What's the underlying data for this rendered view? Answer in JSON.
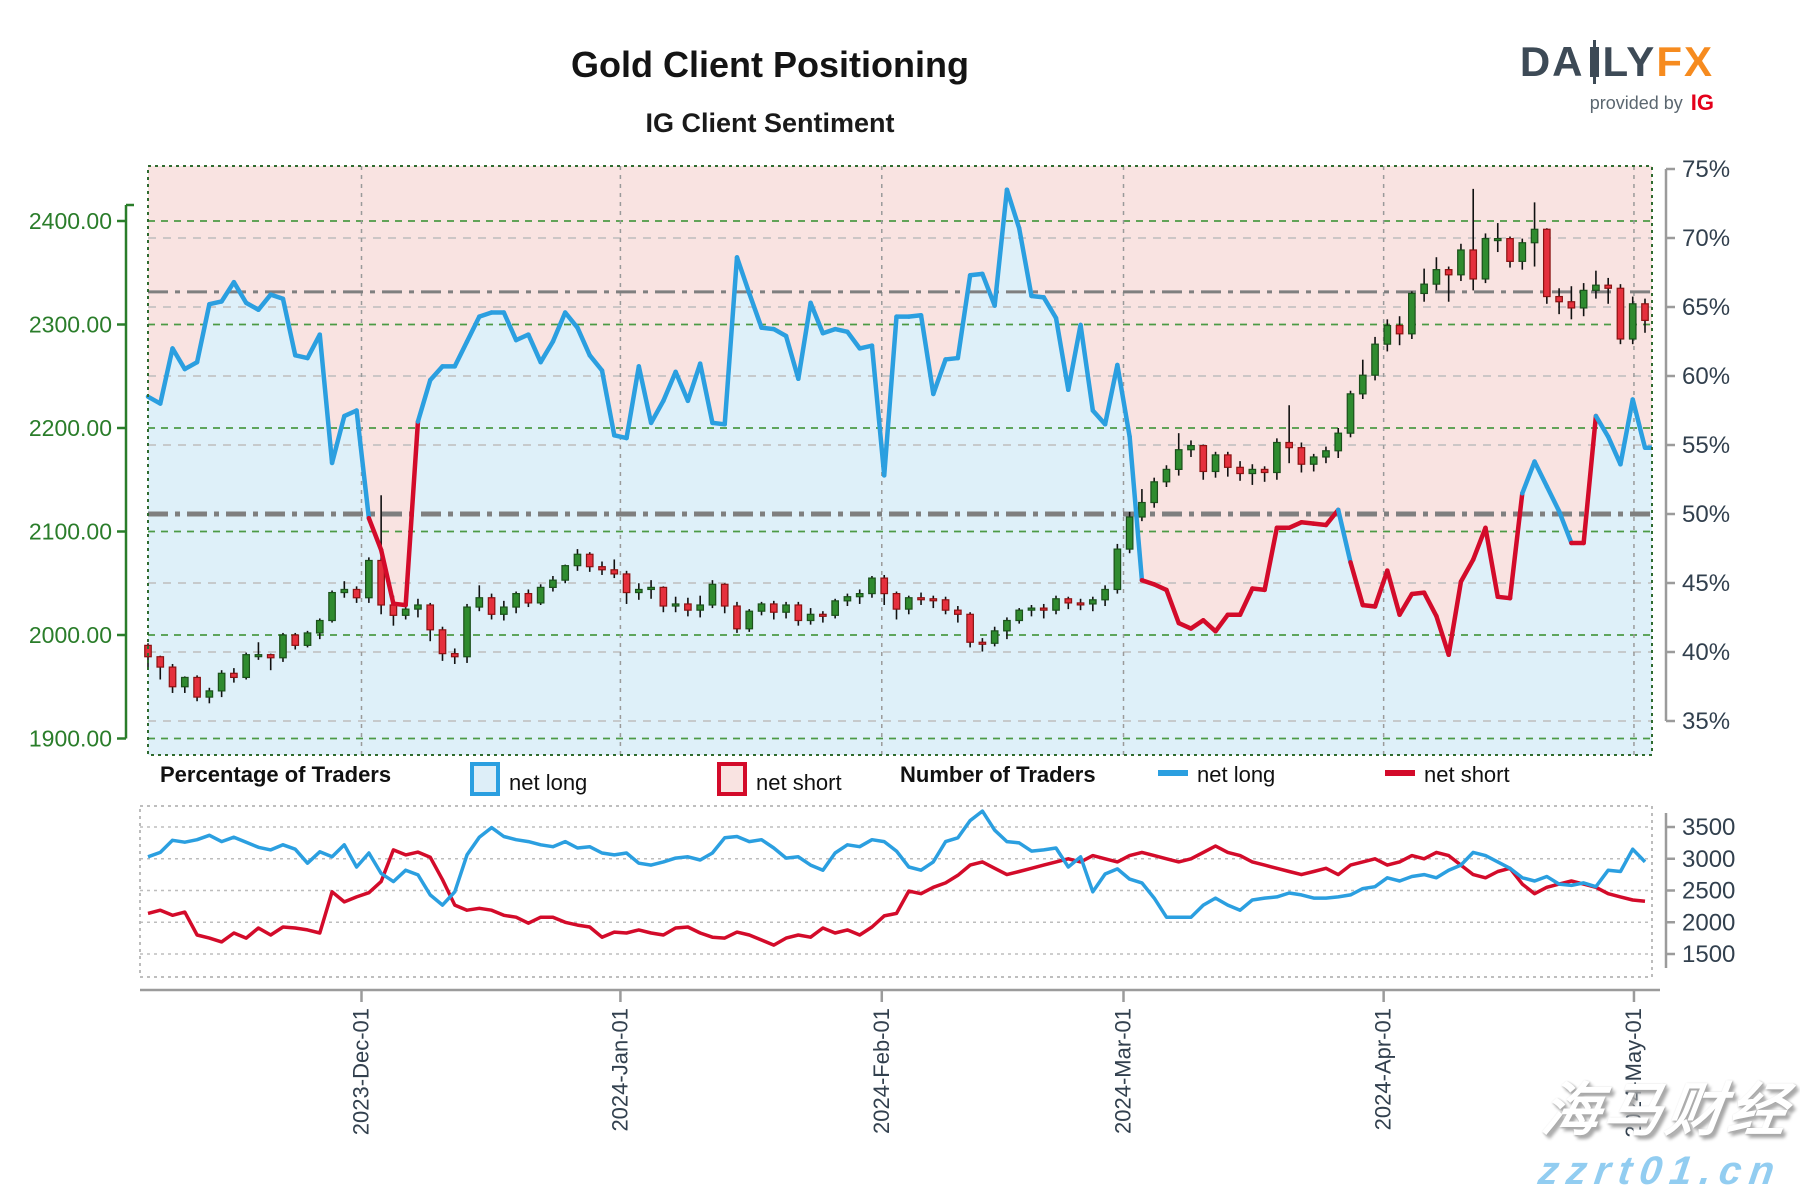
{
  "title": "Gold Client Positioning",
  "subtitle": "IG Client Sentiment",
  "logo": {
    "brand_part1": "DA",
    "brand_part2": "LY",
    "brand_part3": "FX",
    "candle_icon": "candlestick-icon",
    "provided_by": "provided by",
    "ig": "IG"
  },
  "legend": {
    "pct_header": "Percentage of Traders",
    "pct_net_long": "net long",
    "pct_net_short": "net short",
    "num_header": "Number of Traders",
    "num_net_long": "net long",
    "num_net_short": "net short"
  },
  "watermark": {
    "line1": "海马财经",
    "line2": "zzrt01.cn"
  },
  "colors": {
    "net_long": "#2b9fe0",
    "net_short": "#d30b2a",
    "fill_above_pink": "#f9e3e1",
    "fill_below_blue": "#def0f9",
    "candle_up_fill": "#2f8b2f",
    "candle_up_stroke": "#1b511b",
    "candle_down_fill": "#e5303d",
    "candle_down_stroke": "#8c1212",
    "wick": "#111111",
    "price_axis_green": "#2a7d2a",
    "pct_axis_navy": "#32404e",
    "grid_green": "#4c9a45",
    "grid_gray": "#bdbdbd",
    "month_line": "#9a9a9a",
    "ref_line_gray": "#7f7f7f"
  },
  "chart_data": {
    "type": "candlestick+line",
    "title": "Gold Client Positioning",
    "subtitle": "IG Client Sentiment",
    "price_axis": {
      "side": "left",
      "min": 1900,
      "max": 2400,
      "ticks": [
        {
          "v": 2400,
          "label": "2400.00"
        },
        {
          "v": 2300,
          "label": "2300.00"
        },
        {
          "v": 2200,
          "label": "2200.00"
        },
        {
          "v": 2100,
          "label": "2100.00"
        },
        {
          "v": 2000,
          "label": "2000.00"
        },
        {
          "v": 1900,
          "label": "1900.00"
        }
      ]
    },
    "percent_axis": {
      "side": "right",
      "min": 35,
      "max": 75,
      "ticks": [
        {
          "v": 75,
          "label": "75%"
        },
        {
          "v": 70,
          "label": "70%"
        },
        {
          "v": 65,
          "label": "65%"
        },
        {
          "v": 60,
          "label": "60%"
        },
        {
          "v": 55,
          "label": "55%"
        },
        {
          "v": 50,
          "label": "50%"
        },
        {
          "v": 45,
          "label": "45%"
        },
        {
          "v": 40,
          "label": "40%"
        },
        {
          "v": 35,
          "label": "35%"
        }
      ]
    },
    "count_axis": {
      "side": "right",
      "min": 1500,
      "max": 3500,
      "ticks": [
        {
          "v": 3500,
          "label": "3500"
        },
        {
          "v": 3000,
          "label": "3000"
        },
        {
          "v": 2500,
          "label": "2500"
        },
        {
          "v": 2000,
          "label": "2000"
        },
        {
          "v": 1500,
          "label": "1500"
        }
      ]
    },
    "x_ticks": [
      {
        "pos_day": 17.4,
        "label": "2023-Dec-01"
      },
      {
        "pos_day": 38.5,
        "label": "2024-Jan-01"
      },
      {
        "pos_day": 59.8,
        "label": "2024-Feb-01"
      },
      {
        "pos_day": 79.5,
        "label": "2024-Mar-01"
      },
      {
        "pos_day": 100.7,
        "label": "2024-Apr-01"
      },
      {
        "pos_day": 121.1,
        "label": "2024-May-01"
      }
    ],
    "reference_lines": [
      {
        "axis": "percent",
        "value": 50,
        "style": "dash-dot",
        "weight": "thick"
      },
      {
        "axis": "percent",
        "value": 66.1,
        "style": "dash-dot",
        "weight": "thin"
      }
    ],
    "dates": [
      "2023-11-06",
      "2023-11-07",
      "2023-11-08",
      "2023-11-09",
      "2023-11-10",
      "2023-11-13",
      "2023-11-14",
      "2023-11-15",
      "2023-11-16",
      "2023-11-17",
      "2023-11-20",
      "2023-11-21",
      "2023-11-22",
      "2023-11-24",
      "2023-11-27",
      "2023-11-28",
      "2023-11-29",
      "2023-11-30",
      "2023-12-01",
      "2023-12-04",
      "2023-12-05",
      "2023-12-06",
      "2023-12-07",
      "2023-12-08",
      "2023-12-11",
      "2023-12-12",
      "2023-12-13",
      "2023-12-14",
      "2023-12-15",
      "2023-12-18",
      "2023-12-19",
      "2023-12-20",
      "2023-12-21",
      "2023-12-22",
      "2023-12-26",
      "2023-12-27",
      "2023-12-28",
      "2023-12-29",
      "2024-01-02",
      "2024-01-03",
      "2024-01-04",
      "2024-01-05",
      "2024-01-08",
      "2024-01-09",
      "2024-01-10",
      "2024-01-11",
      "2024-01-12",
      "2024-01-16",
      "2024-01-17",
      "2024-01-18",
      "2024-01-19",
      "2024-01-22",
      "2024-01-23",
      "2024-01-24",
      "2024-01-25",
      "2024-01-26",
      "2024-01-29",
      "2024-01-30",
      "2024-01-31",
      "2024-02-01",
      "2024-02-02",
      "2024-02-05",
      "2024-02-06",
      "2024-02-07",
      "2024-02-08",
      "2024-02-09",
      "2024-02-12",
      "2024-02-13",
      "2024-02-14",
      "2024-02-15",
      "2024-02-16",
      "2024-02-20",
      "2024-02-21",
      "2024-02-22",
      "2024-02-23",
      "2024-02-26",
      "2024-02-27",
      "2024-02-28",
      "2024-02-29",
      "2024-03-01",
      "2024-03-04",
      "2024-03-05",
      "2024-03-06",
      "2024-03-07",
      "2024-03-08",
      "2024-03-11",
      "2024-03-12",
      "2024-03-13",
      "2024-03-14",
      "2024-03-15",
      "2024-03-18",
      "2024-03-19",
      "2024-03-20",
      "2024-03-21",
      "2024-03-22",
      "2024-03-25",
      "2024-03-26",
      "2024-03-27",
      "2024-03-28",
      "2024-04-01",
      "2024-04-02",
      "2024-04-03",
      "2024-04-04",
      "2024-04-05",
      "2024-04-08",
      "2024-04-09",
      "2024-04-10",
      "2024-04-11",
      "2024-04-12",
      "2024-04-15",
      "2024-04-16",
      "2024-04-17",
      "2024-04-18",
      "2024-04-19",
      "2024-04-22",
      "2024-04-23",
      "2024-04-24",
      "2024-04-25",
      "2024-04-26",
      "2024-04-29",
      "2024-04-30",
      "2024-05-01",
      "2024-05-02"
    ],
    "candles_ohlc": [
      [
        1990,
        1992,
        1969,
        1979
      ],
      [
        1979,
        1980,
        1957,
        1969
      ],
      [
        1969,
        1972,
        1944,
        1950
      ],
      [
        1950,
        1960,
        1944,
        1959
      ],
      [
        1959,
        1961,
        1936,
        1940
      ],
      [
        1940,
        1949,
        1934,
        1946
      ],
      [
        1946,
        1966,
        1940,
        1963
      ],
      [
        1963,
        1968,
        1954,
        1959
      ],
      [
        1959,
        1983,
        1957,
        1981
      ],
      [
        1981,
        1993,
        1976,
        1981
      ],
      [
        1981,
        1982,
        1966,
        1978
      ],
      [
        1978,
        2002,
        1974,
        2000
      ],
      [
        2000,
        2002,
        1986,
        1990
      ],
      [
        1990,
        2004,
        1988,
        2002
      ],
      [
        2002,
        2016,
        1996,
        2014
      ],
      [
        2014,
        2043,
        2012,
        2041
      ],
      [
        2041,
        2052,
        2036,
        2044
      ],
      [
        2044,
        2047,
        2031,
        2036
      ],
      [
        2036,
        2075,
        2031,
        2072
      ],
      [
        2072,
        2135,
        2020,
        2029
      ],
      [
        2029,
        2038,
        2009,
        2019
      ],
      [
        2019,
        2034,
        2015,
        2025
      ],
      [
        2025,
        2035,
        2017,
        2029
      ],
      [
        2029,
        2031,
        1994,
        2005
      ],
      [
        2005,
        2008,
        1975,
        1982
      ],
      [
        1982,
        1987,
        1972,
        1979
      ],
      [
        1979,
        2030,
        1973,
        2027
      ],
      [
        2027,
        2048,
        2023,
        2036
      ],
      [
        2036,
        2040,
        2015,
        2020
      ],
      [
        2020,
        2033,
        2014,
        2027
      ],
      [
        2027,
        2042,
        2021,
        2040
      ],
      [
        2040,
        2044,
        2027,
        2031
      ],
      [
        2031,
        2049,
        2029,
        2046
      ],
      [
        2046,
        2057,
        2042,
        2053
      ],
      [
        2053,
        2068,
        2050,
        2067
      ],
      [
        2067,
        2083,
        2062,
        2078
      ],
      [
        2078,
        2080,
        2061,
        2066
      ],
      [
        2066,
        2071,
        2058,
        2063
      ],
      [
        2063,
        2073,
        2055,
        2059
      ],
      [
        2059,
        2062,
        2030,
        2041
      ],
      [
        2041,
        2050,
        2034,
        2044
      ],
      [
        2044,
        2053,
        2035,
        2046
      ],
      [
        2046,
        2047,
        2022,
        2028
      ],
      [
        2028,
        2037,
        2022,
        2030
      ],
      [
        2030,
        2036,
        2018,
        2024
      ],
      [
        2024,
        2038,
        2017,
        2029
      ],
      [
        2029,
        2053,
        2026,
        2049
      ],
      [
        2049,
        2050,
        2021,
        2028
      ],
      [
        2028,
        2032,
        2002,
        2006
      ],
      [
        2006,
        2025,
        2003,
        2023
      ],
      [
        2023,
        2032,
        2019,
        2030
      ],
      [
        2030,
        2033,
        2015,
        2022
      ],
      [
        2022,
        2032,
        2016,
        2029
      ],
      [
        2029,
        2032,
        2009,
        2014
      ],
      [
        2014,
        2026,
        2010,
        2020
      ],
      [
        2020,
        2023,
        2012,
        2019
      ],
      [
        2019,
        2035,
        2016,
        2033
      ],
      [
        2033,
        2040,
        2028,
        2037
      ],
      [
        2037,
        2044,
        2030,
        2040
      ],
      [
        2040,
        2057,
        2036,
        2055
      ],
      [
        2055,
        2058,
        2029,
        2040
      ],
      [
        2040,
        2042,
        2015,
        2025
      ],
      [
        2025,
        2038,
        2020,
        2036
      ],
      [
        2036,
        2041,
        2029,
        2035
      ],
      [
        2035,
        2038,
        2026,
        2034
      ],
      [
        2034,
        2037,
        2020,
        2024
      ],
      [
        2024,
        2028,
        2012,
        2020
      ],
      [
        2020,
        2022,
        1988,
        1993
      ],
      [
        1993,
        1997,
        1984,
        1992
      ],
      [
        1992,
        2008,
        1989,
        2004
      ],
      [
        2004,
        2017,
        1996,
        2014
      ],
      [
        2014,
        2026,
        2011,
        2024
      ],
      [
        2024,
        2029,
        2018,
        2026
      ],
      [
        2026,
        2030,
        2016,
        2024
      ],
      [
        2024,
        2038,
        2020,
        2035
      ],
      [
        2035,
        2037,
        2025,
        2031
      ],
      [
        2031,
        2035,
        2024,
        2030
      ],
      [
        2030,
        2037,
        2023,
        2034
      ],
      [
        2034,
        2048,
        2028,
        2044
      ],
      [
        2044,
        2088,
        2040,
        2083
      ],
      [
        2083,
        2119,
        2079,
        2114
      ],
      [
        2114,
        2141,
        2110,
        2128
      ],
      [
        2128,
        2152,
        2123,
        2148
      ],
      [
        2148,
        2164,
        2143,
        2160
      ],
      [
        2160,
        2195,
        2154,
        2179
      ],
      [
        2179,
        2188,
        2172,
        2183
      ],
      [
        2183,
        2184,
        2150,
        2158
      ],
      [
        2158,
        2177,
        2152,
        2174
      ],
      [
        2174,
        2177,
        2153,
        2162
      ],
      [
        2162,
        2168,
        2149,
        2156
      ],
      [
        2156,
        2165,
        2145,
        2160
      ],
      [
        2160,
        2163,
        2148,
        2157
      ],
      [
        2157,
        2190,
        2150,
        2186
      ],
      [
        2186,
        2222,
        2166,
        2181
      ],
      [
        2181,
        2186,
        2157,
        2165
      ],
      [
        2165,
        2175,
        2158,
        2172
      ],
      [
        2172,
        2182,
        2166,
        2178
      ],
      [
        2178,
        2200,
        2171,
        2195
      ],
      [
        2195,
        2236,
        2191,
        2233
      ],
      [
        2233,
        2266,
        2228,
        2251
      ],
      [
        2251,
        2288,
        2246,
        2281
      ],
      [
        2281,
        2305,
        2274,
        2299
      ],
      [
        2299,
        2308,
        2280,
        2291
      ],
      [
        2291,
        2332,
        2286,
        2330
      ],
      [
        2330,
        2354,
        2322,
        2339
      ],
      [
        2339,
        2365,
        2333,
        2353
      ],
      [
        2353,
        2356,
        2322,
        2348
      ],
      [
        2348,
        2378,
        2342,
        2372
      ],
      [
        2372,
        2431,
        2333,
        2344
      ],
      [
        2344,
        2388,
        2340,
        2383
      ],
      [
        2383,
        2398,
        2370,
        2383
      ],
      [
        2383,
        2385,
        2355,
        2361
      ],
      [
        2361,
        2383,
        2353,
        2379
      ],
      [
        2379,
        2418,
        2356,
        2392
      ],
      [
        2392,
        2393,
        2320,
        2327
      ],
      [
        2327,
        2335,
        2310,
        2322
      ],
      [
        2322,
        2337,
        2305,
        2316
      ],
      [
        2316,
        2340,
        2308,
        2333
      ],
      [
        2333,
        2352,
        2325,
        2338
      ],
      [
        2338,
        2345,
        2320,
        2335
      ],
      [
        2335,
        2339,
        2281,
        2286
      ],
      [
        2286,
        2327,
        2281,
        2320
      ],
      [
        2320,
        2325,
        2292,
        2304
      ]
    ],
    "percent_net_long": [
      58.5,
      58.0,
      62.0,
      60.5,
      61.0,
      65.2,
      65.4,
      66.8,
      65.3,
      64.8,
      65.9,
      65.6,
      61.5,
      61.3,
      63.0,
      53.7,
      57.1,
      57.5,
      49.7,
      47.4,
      43.5,
      43.4,
      56.7,
      59.7,
      60.7,
      60.7,
      62.5,
      64.3,
      64.6,
      64.6,
      62.6,
      63.0,
      61.0,
      62.5,
      64.6,
      63.5,
      61.5,
      60.4,
      55.7,
      55.5,
      60.7,
      56.6,
      58.2,
      60.3,
      58.2,
      60.9,
      56.6,
      56.5,
      68.6,
      66.0,
      63.5,
      63.4,
      62.9,
      59.8,
      65.3,
      63.1,
      63.4,
      63.2,
      62.0,
      62.2,
      52.8,
      64.3,
      64.3,
      64.4,
      58.7,
      61.2,
      61.3,
      67.3,
      67.4,
      65.1,
      73.5,
      70.7,
      65.8,
      65.7,
      64.2,
      59.0,
      63.7,
      57.5,
      56.5,
      60.8,
      55.6,
      45.2,
      44.9,
      44.5,
      42.1,
      41.7,
      42.3,
      41.5,
      42.7,
      42.7,
      44.6,
      44.5,
      49.0,
      49.0,
      49.4,
      49.3,
      49.2,
      50.3,
      46.5,
      43.4,
      43.3,
      45.9,
      42.7,
      44.2,
      44.3,
      42.6,
      39.8,
      45.1,
      46.7,
      49.0,
      44.0,
      43.9,
      51.5,
      53.8,
      52.0,
      50.2,
      47.9,
      47.9,
      57.1,
      55.6,
      53.6,
      58.3,
      54.8
    ],
    "traders_net_long": [
      3030,
      3100,
      3290,
      3260,
      3300,
      3370,
      3270,
      3340,
      3260,
      3180,
      3140,
      3220,
      3150,
      2930,
      3110,
      3030,
      3220,
      2870,
      3090,
      2770,
      2640,
      2820,
      2745,
      2430,
      2270,
      2480,
      3060,
      3340,
      3490,
      3350,
      3300,
      3270,
      3220,
      3190,
      3270,
      3170,
      3190,
      3090,
      3060,
      3090,
      2930,
      2900,
      2950,
      3010,
      3030,
      2980,
      3090,
      3330,
      3350,
      3270,
      3300,
      3170,
      3010,
      3030,
      2900,
      2820,
      3090,
      3220,
      3190,
      3300,
      3270,
      3120,
      2870,
      2820,
      2950,
      3270,
      3330,
      3600,
      3750,
      3450,
      3270,
      3250,
      3120,
      3140,
      3170,
      2870,
      3030,
      2480,
      2760,
      2840,
      2680,
      2620,
      2380,
      2080,
      2080,
      2080,
      2270,
      2380,
      2270,
      2190,
      2350,
      2380,
      2400,
      2460,
      2430,
      2380,
      2380,
      2400,
      2430,
      2530,
      2560,
      2700,
      2650,
      2720,
      2750,
      2700,
      2820,
      2900,
      3100,
      3050,
      2950,
      2850,
      2700,
      2650,
      2720,
      2600,
      2580,
      2620,
      2560,
      2820,
      2800,
      3150,
      2950
    ],
    "traders_net_short": [
      2140,
      2190,
      2110,
      2160,
      1800,
      1750,
      1690,
      1830,
      1750,
      1910,
      1800,
      1925,
      1910,
      1880,
      1830,
      2480,
      2320,
      2400,
      2465,
      2640,
      3140,
      3060,
      3105,
      3025,
      2670,
      2270,
      2190,
      2220,
      2190,
      2110,
      2080,
      1985,
      2080,
      2080,
      2000,
      1955,
      1925,
      1765,
      1845,
      1830,
      1880,
      1830,
      1800,
      1910,
      1925,
      1830,
      1765,
      1750,
      1845,
      1800,
      1720,
      1640,
      1750,
      1800,
      1765,
      1910,
      1830,
      1880,
      1800,
      1925,
      2100,
      2140,
      2490,
      2450,
      2550,
      2620,
      2740,
      2900,
      2950,
      2850,
      2750,
      2800,
      2850,
      2900,
      2950,
      3000,
      2950,
      3050,
      3000,
      2950,
      3050,
      3100,
      3050,
      3000,
      2950,
      3000,
      3100,
      3200,
      3100,
      3050,
      2950,
      2900,
      2850,
      2800,
      2750,
      2800,
      2850,
      2750,
      2900,
      2950,
      3000,
      2900,
      2950,
      3050,
      3000,
      3100,
      3050,
      2900,
      2750,
      2700,
      2800,
      2850,
      2600,
      2450,
      2550,
      2600,
      2650,
      2600,
      2550,
      2450,
      2400,
      2350,
      2330
    ]
  }
}
